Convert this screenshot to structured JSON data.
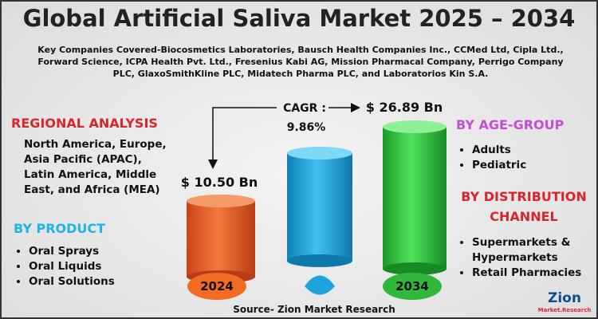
{
  "header": {
    "title": "Global Artificial Saliva Market 2025 – 2034",
    "key_companies": "Key Companies Covered-Biocosmetics Laboratories, Bausch Health Companies Inc., CCMed Ltd, Cipla Ltd., Forward Science, ICPA Health Pvt. Ltd., Fresenius Kabi AG, Mission Pharmacal Company, Perrigo Company PLC, GlaxoSmithKline PLC, Midatech Pharma PLC, and Laboratorios Kin S.A."
  },
  "regional_analysis": {
    "heading": "REGIONAL ANALYSIS",
    "text": "North America, Europe, Asia Pacific (APAC), Latin America, Middle East, and Africa (MEA)"
  },
  "by_product": {
    "heading": "BY PRODUCT",
    "items": [
      "Oral Sprays",
      "Oral Liquids",
      "Oral Solutions"
    ]
  },
  "by_age_group": {
    "heading": "BY AGE-GROUP",
    "items": [
      "Adults",
      "Pediatric"
    ]
  },
  "by_distribution_channel": {
    "heading": "BY DISTRIBUTION CHANNEL",
    "items": [
      "Supermarkets & Hypermarkets",
      "Retail Pharmacies"
    ]
  },
  "market": {
    "cagr_label": "CAGR :",
    "cagr": "9.86%",
    "start_value": "$ 10.50 Bn",
    "end_value": "$ 26.89 Bn",
    "start_year": "2024",
    "end_year": "2034"
  },
  "source": "Source- Zion Market Research",
  "logo": {
    "name": "Zion",
    "tagline": "Market.Research"
  }
}
